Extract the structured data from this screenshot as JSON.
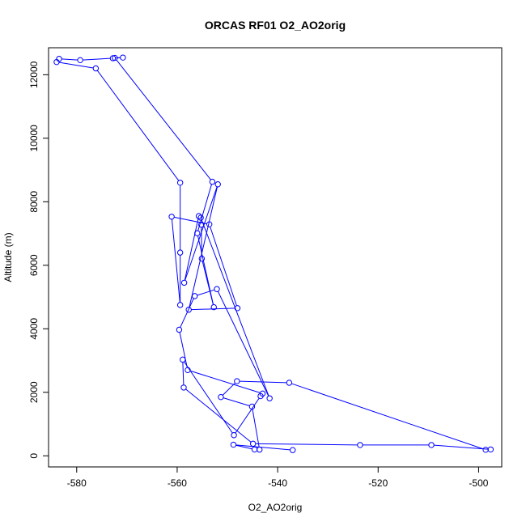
{
  "chart_data": {
    "type": "line",
    "title": "ORCAS RF01 O2_AO2orig",
    "xlabel": "O2_AO2orig",
    "ylabel": "Altitude (m)",
    "xlim": [
      -585.6,
      -495.4
    ],
    "ylim": [
      -350,
      12850
    ],
    "xticks": [
      -580,
      -560,
      -540,
      -520,
      -500
    ],
    "yticks": [
      0,
      2000,
      4000,
      6000,
      8000,
      10000,
      12000
    ],
    "xtick_labels": [
      "-580",
      "-560",
      "-540",
      "-520",
      "-500"
    ],
    "ytick_labels": [
      "0",
      "2000",
      "4000",
      "6000",
      "8000",
      "10000",
      "12000"
    ],
    "grid": false,
    "series": [
      {
        "color": "#0000ff",
        "marker": "open-circle",
        "points": [
          [
            -537.0,
            180
          ],
          [
            -548.8,
            350
          ],
          [
            -544.6,
            200
          ],
          [
            -543.6,
            195
          ],
          [
            -545.1,
            1550
          ],
          [
            -551.3,
            1850
          ],
          [
            -548.1,
            2350
          ],
          [
            -537.7,
            2300
          ],
          [
            -498.6,
            190
          ],
          [
            -497.6,
            200
          ],
          [
            -509.4,
            340
          ],
          [
            -523.6,
            340
          ],
          [
            -544.9,
            380
          ],
          [
            -558.7,
            2150
          ],
          [
            -558.9,
            3030
          ],
          [
            -548.7,
            650
          ],
          [
            -543.4,
            1880
          ],
          [
            -543.0,
            1960
          ],
          [
            -557.9,
            2700
          ],
          [
            -559.6,
            3970
          ],
          [
            -556.5,
            5030
          ],
          [
            -552.1,
            5250
          ],
          [
            -541.6,
            1810
          ],
          [
            -555.3,
            7500
          ],
          [
            -555.7,
            7550
          ],
          [
            -558.6,
            5450
          ],
          [
            -551.9,
            8550
          ],
          [
            -557.7,
            4600
          ],
          [
            -548.0,
            4650
          ],
          [
            -553.6,
            7290
          ],
          [
            -561.1,
            7530
          ],
          [
            -559.4,
            4750
          ],
          [
            -559.4,
            6400
          ],
          [
            -559.4,
            8600
          ],
          [
            -576.2,
            12200
          ],
          [
            -584.0,
            12400
          ],
          [
            -583.5,
            12500
          ],
          [
            -579.3,
            12460
          ],
          [
            -572.8,
            12520
          ],
          [
            -570.8,
            12540
          ],
          [
            -572.4,
            12530
          ],
          [
            -553.0,
            8630
          ],
          [
            -556.0,
            7010
          ],
          [
            -552.7,
            4680
          ],
          [
            -555.1,
            6210
          ],
          [
            -555.2,
            7280
          ]
        ]
      }
    ]
  }
}
